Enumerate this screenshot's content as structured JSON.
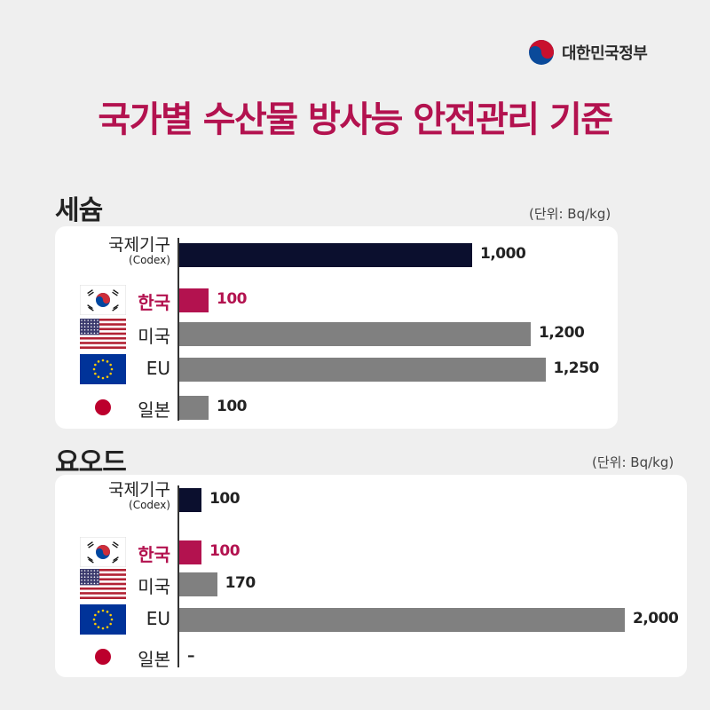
{
  "header": {
    "logo_text": "대한민국정부",
    "title": "국가별 수산물 방사능 안전관리 기준"
  },
  "colors": {
    "title": "#b3124f",
    "codex_bar": "#0b0f2e",
    "korea_bar": "#b3124f",
    "other_bar": "#808080"
  },
  "chart_data": [
    {
      "type": "bar",
      "orientation": "horizontal",
      "title": "세슘",
      "unit": "(단위: Bq/kg)",
      "categories": [
        "국제기구 (Codex)",
        "한국",
        "미국",
        "EU",
        "일본"
      ],
      "values": [
        1000,
        100,
        1200,
        1250,
        100
      ],
      "value_labels": [
        "1,000",
        "100",
        "1,200",
        "1,250",
        "100"
      ]
    },
    {
      "type": "bar",
      "orientation": "horizontal",
      "title": "요오드",
      "unit": "(단위: Bq/kg)",
      "categories": [
        "국제기구 (Codex)",
        "한국",
        "미국",
        "EU",
        "일본"
      ],
      "values": [
        100,
        100,
        170,
        2000,
        null
      ],
      "value_labels": [
        "100",
        "100",
        "170",
        "2,000",
        "–"
      ]
    }
  ],
  "labels": {
    "codex_main": "국제기구",
    "codex_sub": "(Codex)",
    "korea": "한국",
    "usa": "미국",
    "eu": "EU",
    "japan": "일본"
  },
  "flags": [
    "korea-flag-icon",
    "usa-flag-icon",
    "eu-flag-icon",
    "japan-flag-icon"
  ]
}
